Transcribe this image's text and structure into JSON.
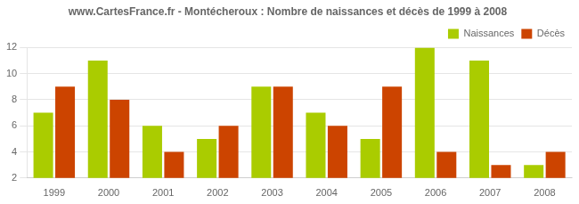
{
  "chart_data": {
    "type": "bar",
    "title": "www.CartesFrance.fr - Montécheroux : Nombre de naissances et décès de 1999 à 2008",
    "categories": [
      "1999",
      "2000",
      "2001",
      "2002",
      "2003",
      "2004",
      "2005",
      "2006",
      "2007",
      "2008"
    ],
    "series": [
      {
        "name": "Naissances",
        "color": "#aacc00",
        "values": [
          7,
          11,
          6,
          5,
          9,
          7,
          5,
          12,
          11,
          3
        ]
      },
      {
        "name": "Décès",
        "color": "#cc4400",
        "values": [
          9,
          8,
          4,
          6,
          9,
          6,
          9,
          4,
          3,
          4
        ]
      }
    ],
    "ylim": [
      2,
      12
    ],
    "yticks": [
      2,
      4,
      6,
      8,
      10,
      12
    ],
    "grid": true,
    "legend": "upper right"
  }
}
